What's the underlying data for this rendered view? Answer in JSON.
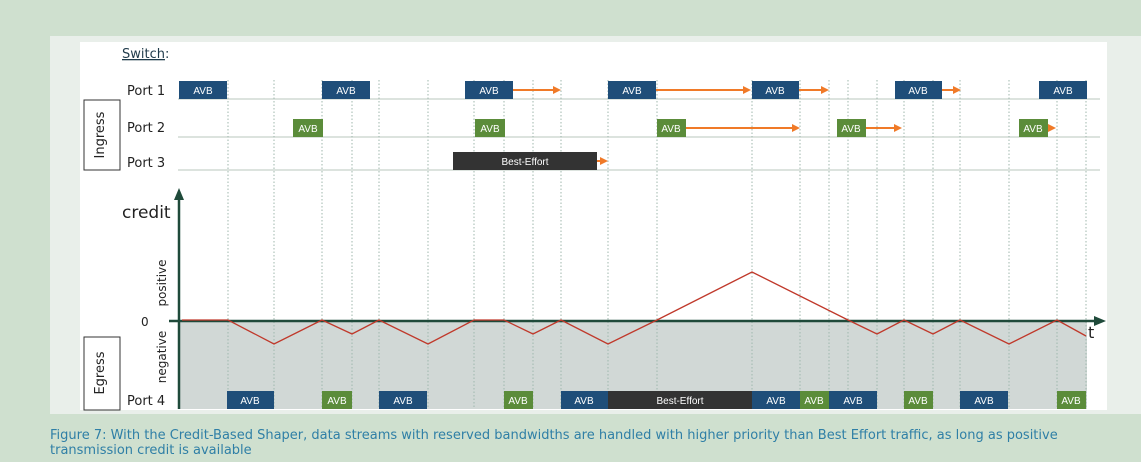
{
  "figure": {
    "header": "Switch",
    "header_colon": ":",
    "ingress_label": "Ingress",
    "egress_label": "Egress",
    "credit_label": "credit",
    "positive_label": "positive",
    "negative_label": "negative",
    "zero_label": "0",
    "time_label": "t",
    "ports": [
      "Port 1",
      "Port 2",
      "Port 3",
      "Port 4"
    ],
    "colors": {
      "avb_blue": "#1f4e79",
      "avb_green": "#5b8c3a",
      "best_effort": "#333333",
      "arrow": "#f07a28",
      "credit_line": "#c0392b",
      "axis": "#1f4a3a"
    }
  },
  "frames": {
    "port1": [
      "AVB",
      "AVB",
      "AVB",
      "AVB",
      "AVB",
      "AVB",
      "AVB"
    ],
    "port2": [
      "AVB",
      "AVB",
      "AVB",
      "AVB",
      "AVB"
    ],
    "port3": [
      "Best-Effort"
    ],
    "port4": [
      "AVB",
      "AVB",
      "AVB",
      "AVB",
      "AVB",
      "Best-Effort",
      "AVB",
      "AVB",
      "AVB",
      "AVB",
      "AVB",
      "AVB"
    ]
  },
  "caption": "Figure 7: With the Credit-Based Shaper, data streams with reserved bandwidths are handled with higher priority than Best Effort traffic, as long as positive transmission credit is available"
}
